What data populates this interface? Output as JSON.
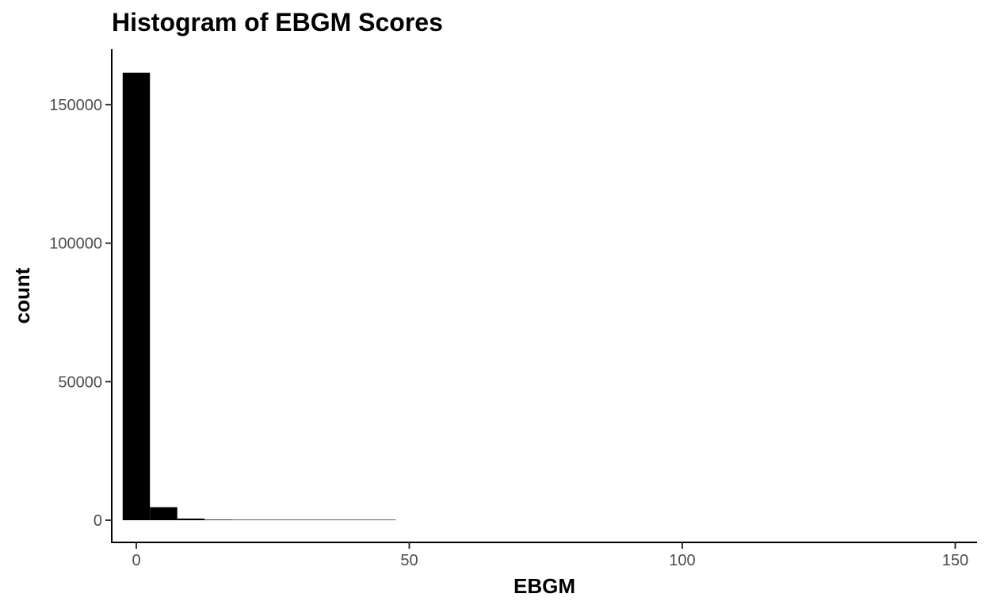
{
  "chart_data": {
    "type": "bar",
    "title": "Histogram of EBGM Scores",
    "xlabel": "EBGM",
    "ylabel": "count",
    "bin_width": 5,
    "bin_centers": [
      0,
      5,
      10,
      15,
      20,
      25,
      30,
      35,
      40,
      45
    ],
    "values": [
      161500,
      4700,
      600,
      220,
      120,
      70,
      40,
      25,
      15,
      10
    ],
    "xlim": [
      -4.5,
      154
    ],
    "ylim": [
      -8000,
      170000
    ],
    "x_ticks": [
      0,
      50,
      100,
      150
    ],
    "x_tick_labels": [
      "0",
      "50",
      "100",
      "150"
    ],
    "y_ticks": [
      0,
      50000,
      100000,
      150000
    ],
    "y_tick_labels": [
      "0",
      "50000",
      "100000",
      "150000"
    ],
    "bar_color": "#000000",
    "grid": false,
    "legend": "none"
  }
}
